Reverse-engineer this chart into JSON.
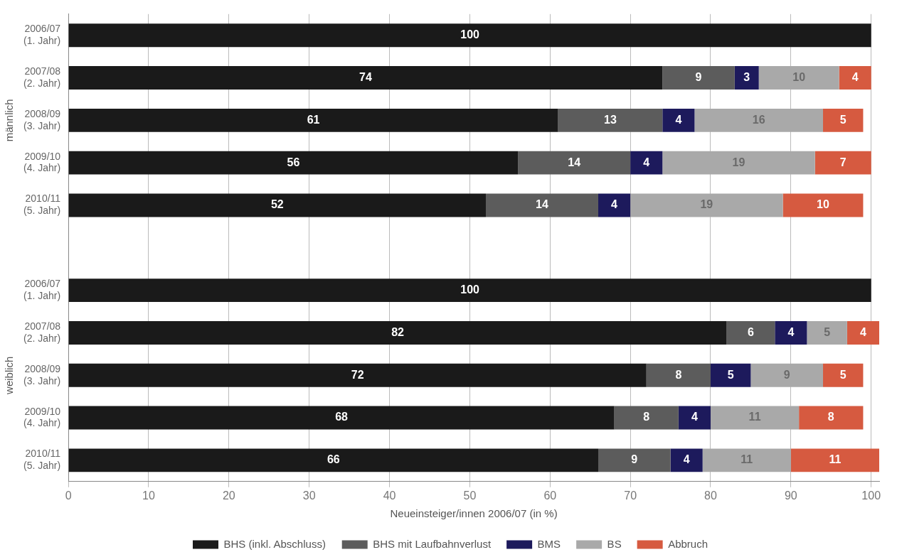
{
  "chart_data": {
    "type": "bar",
    "orientation": "horizontal",
    "stacked": true,
    "data_labels": true,
    "grid": "x",
    "legend": "bottom",
    "xlabel": "Neueinsteiger/innen 2006/07 (in %)",
    "annotations": [
      "männlich",
      "weiblich"
    ],
    "categories": [
      "2006/07 (1. Jahr)",
      "2007/08 (2. Jahr)",
      "2008/09 (3. Jahr)",
      "2009/10 (4. Jahr)",
      "2010/11 (5. Jahr)",
      null,
      "2006/07 (1. Jahr)",
      "2007/08 (2. Jahr)",
      "2008/09 (3. Jahr)",
      "2009/10 (4. Jahr)",
      "2010/11 (5. Jahr)"
    ],
    "xlim": [
      0,
      101
    ],
    "xticks": [
      0,
      10,
      20,
      30,
      40,
      50,
      60,
      70,
      80,
      90,
      100
    ],
    "series": [
      {
        "name": "BHS (inkl. Abschluss)",
        "color": "#1a1a1a",
        "values": [
          100,
          74,
          61,
          56,
          52,
          null,
          100,
          82,
          72,
          68,
          66
        ]
      },
      {
        "name": "BHS mit Laufbahnverlust",
        "color": "#5c5c5c",
        "values": [
          null,
          9,
          13,
          14,
          14,
          null,
          null,
          6,
          8,
          8,
          9
        ]
      },
      {
        "name": "BMS",
        "color": "#1d1a5c",
        "values": [
          null,
          3,
          4,
          4,
          4,
          null,
          null,
          4,
          5,
          4,
          4
        ]
      },
      {
        "name": "BS",
        "color": "#a9a9a9",
        "values": [
          null,
          10,
          16,
          19,
          19,
          null,
          null,
          5,
          9,
          11,
          11
        ]
      },
      {
        "name": "Abbruch",
        "color": "#d65a40",
        "values": [
          null,
          4,
          5,
          7,
          10,
          null,
          null,
          4,
          5,
          8,
          11
        ]
      }
    ]
  }
}
